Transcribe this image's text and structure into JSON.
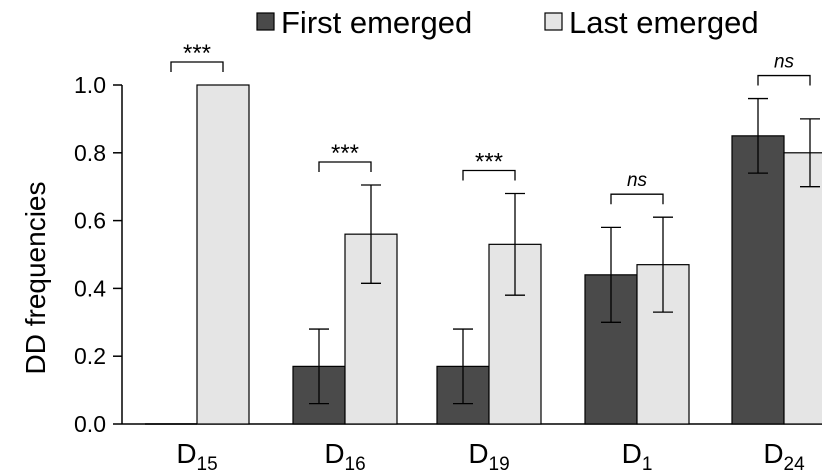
{
  "chart_data": {
    "type": "bar",
    "ylabel": "DD frequencies",
    "ylim": [
      0,
      1.0
    ],
    "yticks": [
      "0.0",
      "0.2",
      "0.4",
      "0.6",
      "0.8",
      "1.0"
    ],
    "grid": false,
    "legend_position": "top",
    "categories": [
      {
        "main": "D",
        "sub": "15"
      },
      {
        "main": "D",
        "sub": "16"
      },
      {
        "main": "D",
        "sub": "19"
      },
      {
        "main": "D",
        "sub": "1"
      },
      {
        "main": "D",
        "sub": "24"
      }
    ],
    "series": [
      {
        "name": "First emerged",
        "color": "#4a4a4a",
        "values": [
          0.0,
          0.17,
          0.17,
          0.44,
          0.85
        ],
        "error_low": [
          null,
          0.06,
          0.06,
          0.3,
          0.74
        ],
        "error_high": [
          null,
          0.28,
          0.28,
          0.58,
          0.96
        ]
      },
      {
        "name": "Last emerged",
        "color": "#e5e5e5",
        "values": [
          1.0,
          0.56,
          0.53,
          0.47,
          0.8
        ],
        "error_low": [
          null,
          0.415,
          0.38,
          0.33,
          0.7
        ],
        "error_high": [
          null,
          0.705,
          0.68,
          0.61,
          0.9
        ]
      }
    ],
    "significance": [
      "***",
      "***",
      "***",
      "ns",
      "ns"
    ]
  }
}
